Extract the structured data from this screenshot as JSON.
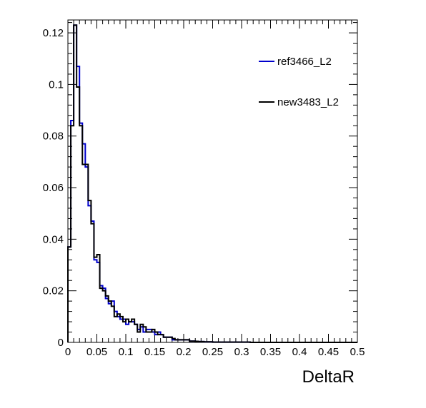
{
  "chart_data": {
    "type": "histogram",
    "xlabel": "DeltaR",
    "ylabel": "",
    "xlim": [
      0,
      0.5
    ],
    "ylim": [
      0,
      0.125
    ],
    "bin_width": 0.005,
    "x_ticks": [
      "0",
      "0.05",
      "0.1",
      "0.15",
      "0.2",
      "0.25",
      "0.3",
      "0.35",
      "0.4",
      "0.45",
      "0.5"
    ],
    "y_ticks": [
      "0",
      "0.02",
      "0.04",
      "0.06",
      "0.08",
      "0.1",
      "0.12"
    ],
    "legend": {
      "placement": "top-right"
    },
    "series": [
      {
        "name": "ref3466_L2",
        "color": "#0000cc",
        "values": [
          0.037,
          0.086,
          0.123,
          0.107,
          0.085,
          0.077,
          0.068,
          0.053,
          0.047,
          0.032,
          0.031,
          0.022,
          0.021,
          0.017,
          0.015,
          0.016,
          0.012,
          0.01,
          0.009,
          0.009,
          0.007,
          0.008,
          0.008,
          0.007,
          0.005,
          0.006,
          0.004,
          0.005,
          0.005,
          0.004,
          0.003,
          0.004,
          0.003,
          0.002,
          0.002,
          0.002,
          0.001,
          0.001,
          0.001,
          0.001,
          0.001,
          0.001,
          0.0005,
          0.0005,
          0.0004,
          0.0003,
          0.0003,
          0.0002,
          0.0002,
          0.0002,
          0.0001,
          0.0001,
          0.0001,
          0.0001,
          0.0001,
          0.0001,
          0.0001,
          0.0001,
          0.0001,
          0.0001,
          0.0001,
          0.0001,
          0.0001,
          0,
          0,
          0,
          0,
          0,
          0,
          0,
          0,
          0,
          0,
          0,
          0,
          0,
          0,
          0,
          0,
          0,
          0,
          0,
          0,
          0,
          0,
          0,
          0,
          0,
          0,
          0,
          0,
          0,
          0,
          0,
          0,
          0,
          0,
          0,
          0,
          0
        ]
      },
      {
        "name": "new3483_L2",
        "color": "#000000",
        "values": [
          0.037,
          0.084,
          0.123,
          0.099,
          0.084,
          0.069,
          0.069,
          0.055,
          0.046,
          0.033,
          0.034,
          0.021,
          0.02,
          0.018,
          0.016,
          0.014,
          0.01,
          0.011,
          0.01,
          0.008,
          0.009,
          0.008,
          0.009,
          0.007,
          0.004,
          0.007,
          0.006,
          0.004,
          0.004,
          0.005,
          0.004,
          0.003,
          0.003,
          0.002,
          0.002,
          0.002,
          0.0015,
          0.001,
          0.001,
          0.001,
          0.001,
          0.001,
          0.0005,
          0.0005,
          0.0004,
          0.0003,
          0.0003,
          0.0002,
          0.0002,
          0.0002,
          0.0001,
          0.0001,
          0.0001,
          0.0001,
          0.0001,
          0.0001,
          0.0001,
          0.0001,
          0.0001,
          0.0001,
          0.0001,
          0.0001,
          0.0001,
          0,
          0,
          0,
          0,
          0,
          0,
          0,
          0,
          0,
          0,
          0,
          0,
          0,
          0,
          0,
          0,
          0,
          0,
          0,
          0,
          0,
          0,
          0,
          0,
          0,
          0,
          0,
          0,
          0,
          0,
          0,
          0,
          0,
          0,
          0,
          0,
          0
        ]
      }
    ]
  }
}
